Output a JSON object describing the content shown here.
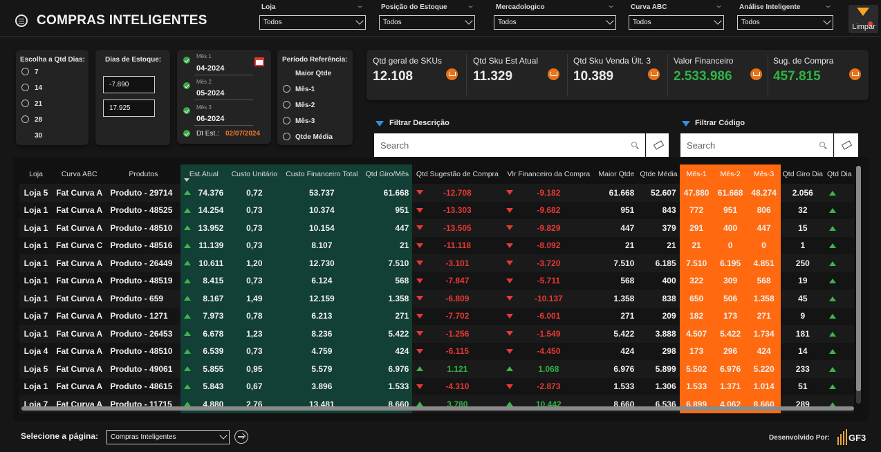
{
  "header": {
    "title": "COMPRAS INTELIGENTES",
    "limpar_label": "Limpar",
    "slicers": [
      {
        "label": "Loja",
        "value": "Todos"
      },
      {
        "label": "Posição do Estoque",
        "value": "Todos"
      },
      {
        "label": "Mercadologico",
        "value": "Todos"
      },
      {
        "label": "Curva ABC",
        "value": "Todos"
      },
      {
        "label": "Análise Inteligente",
        "value": "Todos"
      }
    ]
  },
  "qtd_dias": {
    "title": "Escolha a Qtd Dias:",
    "options": [
      "7",
      "14",
      "21",
      "28",
      "30"
    ]
  },
  "dias_estoque": {
    "title": "Dias de Estoque:",
    "min": "-7.890",
    "max": "17.925"
  },
  "meses": {
    "items": [
      {
        "small": "Mês 1",
        "value": "04-2024"
      },
      {
        "small": "Mês 2",
        "value": "05-2024"
      },
      {
        "small": "Mês 3",
        "value": "06-2024"
      }
    ],
    "dt_label": "Dt Est.:",
    "dt_value": "02/07/2024"
  },
  "periodo": {
    "title": "Período Referência:",
    "options": [
      "Maior Qtde",
      "Mês-1",
      "Mês-2",
      "Mês-3",
      "Qtde Média"
    ]
  },
  "kpis": [
    {
      "label": "Qtd geral de SKUs",
      "value": "12.108"
    },
    {
      "label": "Qtd Sku Est Atual",
      "value": "11.329"
    },
    {
      "label": "Qtd Sku Venda Últ. 3",
      "value": "10.389"
    },
    {
      "label": "Valor Financeiro",
      "value": "2.533.986"
    },
    {
      "label": "Sug. de Compra",
      "value": "457.815"
    }
  ],
  "filters": {
    "descricao_label": "Filtrar Descrição",
    "codigo_label": "Filtrar Código",
    "placeholder": "Search"
  },
  "table": {
    "columns": [
      "Loja",
      "Curva ABC",
      "Produtos",
      "Est.Atual",
      "Custo Unitário",
      "Custo Financeiro Total",
      "Qtd Giro/Mês",
      "Qtd Sugestão de Compra",
      "Vlr Financeiro da Compra",
      "Maior Qtde",
      "Qtde Média",
      "Mês-1",
      "Mês-2",
      "Mês-3",
      "Qtd Giro Dia",
      "Qtd Dia"
    ],
    "rows": [
      {
        "loja": "Loja 5",
        "curva": "Fat Curva A",
        "produto": "Produto - 29714",
        "est": "74.376",
        "custo": "0,72",
        "fin": "53.737",
        "giro": "61.668",
        "sug_dir": "down",
        "sug": "-12.708",
        "vlr_dir": "down",
        "vlr": "-9.182",
        "maior": "61.668",
        "media": "52.607",
        "m1": "47.880",
        "m2": "61.668",
        "m3": "48.274",
        "giro_dia": "2.056",
        "dia_dir": "up"
      },
      {
        "loja": "Loja 1",
        "curva": "Fat Curva A",
        "produto": "Produto - 48525",
        "est": "14.254",
        "custo": "0,73",
        "fin": "10.374",
        "giro": "951",
        "sug_dir": "down",
        "sug": "-13.303",
        "vlr_dir": "down",
        "vlr": "-9.682",
        "maior": "951",
        "media": "843",
        "m1": "772",
        "m2": "951",
        "m3": "806",
        "giro_dia": "32",
        "dia_dir": "up"
      },
      {
        "loja": "Loja 1",
        "curva": "Fat Curva A",
        "produto": "Produto - 48510",
        "est": "13.952",
        "custo": "0,73",
        "fin": "10.154",
        "giro": "447",
        "sug_dir": "down",
        "sug": "-13.505",
        "vlr_dir": "down",
        "vlr": "-9.829",
        "maior": "447",
        "media": "379",
        "m1": "291",
        "m2": "400",
        "m3": "447",
        "giro_dia": "15",
        "dia_dir": "up"
      },
      {
        "loja": "Loja 1",
        "curva": "Fat Curva C",
        "produto": "Produto - 48516",
        "est": "11.139",
        "custo": "0,73",
        "fin": "8.107",
        "giro": "21",
        "sug_dir": "down",
        "sug": "-11.118",
        "vlr_dir": "down",
        "vlr": "-8.092",
        "maior": "21",
        "media": "21",
        "m1": "21",
        "m2": "0",
        "m3": "0",
        "giro_dia": "1",
        "dia_dir": "up"
      },
      {
        "loja": "Loja 1",
        "curva": "Fat Curva A",
        "produto": "Produto - 26449",
        "est": "10.611",
        "custo": "1,20",
        "fin": "12.730",
        "giro": "7.510",
        "sug_dir": "down",
        "sug": "-3.101",
        "vlr_dir": "down",
        "vlr": "-3.720",
        "maior": "7.510",
        "media": "6.185",
        "m1": "7.510",
        "m2": "6.195",
        "m3": "4.851",
        "giro_dia": "250",
        "dia_dir": "up"
      },
      {
        "loja": "Loja 1",
        "curva": "Fat Curva A",
        "produto": "Produto - 48519",
        "est": "8.415",
        "custo": "0,73",
        "fin": "6.124",
        "giro": "568",
        "sug_dir": "down",
        "sug": "-7.847",
        "vlr_dir": "down",
        "vlr": "-5.711",
        "maior": "568",
        "media": "400",
        "m1": "322",
        "m2": "309",
        "m3": "568",
        "giro_dia": "19",
        "dia_dir": "up"
      },
      {
        "loja": "Loja 1",
        "curva": "Fat Curva A",
        "produto": "Produto - 659",
        "est": "8.167",
        "custo": "1,49",
        "fin": "12.159",
        "giro": "1.358",
        "sug_dir": "down",
        "sug": "-6.809",
        "vlr_dir": "down",
        "vlr": "-10.137",
        "maior": "1.358",
        "media": "838",
        "m1": "650",
        "m2": "506",
        "m3": "1.358",
        "giro_dia": "45",
        "dia_dir": "up"
      },
      {
        "loja": "Loja 7",
        "curva": "Fat Curva A",
        "produto": "Produto - 1271",
        "est": "7.973",
        "custo": "0,78",
        "fin": "6.213",
        "giro": "271",
        "sug_dir": "down",
        "sug": "-7.702",
        "vlr_dir": "down",
        "vlr": "-6.001",
        "maior": "271",
        "media": "209",
        "m1": "182",
        "m2": "173",
        "m3": "271",
        "giro_dia": "9",
        "dia_dir": "up"
      },
      {
        "loja": "Loja 1",
        "curva": "Fat Curva A",
        "produto": "Produto - 26453",
        "est": "6.678",
        "custo": "1,23",
        "fin": "8.236",
        "giro": "5.422",
        "sug_dir": "down",
        "sug": "-1.256",
        "vlr_dir": "down",
        "vlr": "-1.549",
        "maior": "5.422",
        "media": "3.888",
        "m1": "4.507",
        "m2": "5.422",
        "m3": "1.734",
        "giro_dia": "181",
        "dia_dir": "up"
      },
      {
        "loja": "Loja 4",
        "curva": "Fat Curva A",
        "produto": "Produto - 48510",
        "est": "6.539",
        "custo": "0,73",
        "fin": "4.759",
        "giro": "424",
        "sug_dir": "down",
        "sug": "-6.115",
        "vlr_dir": "down",
        "vlr": "-4.450",
        "maior": "424",
        "media": "298",
        "m1": "173",
        "m2": "296",
        "m3": "424",
        "giro_dia": "14",
        "dia_dir": "up"
      },
      {
        "loja": "Loja 5",
        "curva": "Fat Curva A",
        "produto": "Produto - 49061",
        "est": "5.855",
        "custo": "0,95",
        "fin": "5.579",
        "giro": "6.976",
        "sug_dir": "up",
        "sug": "1.121",
        "vlr_dir": "up",
        "vlr": "1.068",
        "maior": "6.976",
        "media": "5.899",
        "m1": "5.502",
        "m2": "6.976",
        "m3": "5.220",
        "giro_dia": "233",
        "dia_dir": "up"
      },
      {
        "loja": "Loja 1",
        "curva": "Fat Curva A",
        "produto": "Produto - 48615",
        "est": "5.843",
        "custo": "0,67",
        "fin": "3.896",
        "giro": "1.533",
        "sug_dir": "down",
        "sug": "-4.310",
        "vlr_dir": "down",
        "vlr": "-2.873",
        "maior": "1.533",
        "media": "1.306",
        "m1": "1.533",
        "m2": "1.371",
        "m3": "1.014",
        "giro_dia": "51",
        "dia_dir": "up"
      },
      {
        "loja": "Loja 7",
        "curva": "Fat Curva A",
        "produto": "Produto - 11715",
        "est": "4.880",
        "custo": "2,76",
        "fin": "13.481",
        "giro": "8.660",
        "sug_dir": "up",
        "sug": "3.780",
        "vlr_dir": "up",
        "vlr": "10.442",
        "maior": "8.660",
        "media": "6.536",
        "m1": "6.899",
        "m2": "4.062",
        "m3": "8.660",
        "giro_dia": "289",
        "dia_dir": "up"
      }
    ]
  },
  "footer": {
    "page_label": "Selecione a página:",
    "page_value": "Compras Inteligentes",
    "dev_label": "Desenvolvido Por:",
    "logo_text": "GF3"
  }
}
